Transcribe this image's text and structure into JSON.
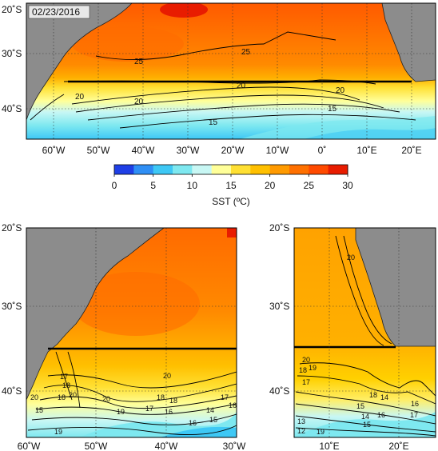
{
  "date_label": "02/23/2016",
  "colorbar": {
    "title": "SST (ºC)",
    "ticks": [
      "0",
      "5",
      "10",
      "15",
      "20",
      "25",
      "30"
    ],
    "range": [
      0,
      30
    ],
    "colors": [
      "#1f3fe6",
      "#2f8ff5",
      "#3ec8f5",
      "#7ee8f0",
      "#c8f7f4",
      "#ffff99",
      "#ffe033",
      "#ffc000",
      "#ff9a00",
      "#ff7000",
      "#ff4a00",
      "#e81c00"
    ]
  },
  "top_map": {
    "lat_labels": [
      "20˚S",
      "30˚S",
      "40˚S"
    ],
    "lon_labels": [
      "60˚W",
      "50˚W",
      "40˚W",
      "30˚W",
      "20˚W",
      "10˚W",
      "0˚",
      "10˚E",
      "20˚E"
    ],
    "contour_labels": [
      "25",
      "25",
      "20",
      "20",
      "20",
      "20",
      "15",
      "15"
    ]
  },
  "bottom_left_map": {
    "lat_labels": [
      "20˚S",
      "30˚S",
      "40˚S"
    ],
    "lon_labels": [
      "60˚W",
      "50˚W",
      "40˚W",
      "30˚W"
    ],
    "contour_labels": [
      "20",
      "17",
      "18",
      "18",
      "20",
      "15",
      "20",
      "19",
      "18",
      "17",
      "16",
      "16",
      "16",
      "15",
      "14",
      "18",
      "19",
      "17",
      "20"
    ]
  },
  "bottom_right_map": {
    "lat_labels": [
      "20˚S",
      "30˚S",
      "40˚S"
    ],
    "lon_labels": [
      "10˚E",
      "20˚E"
    ],
    "contour_labels": [
      "20",
      "20",
      "18",
      "19",
      "17",
      "18",
      "16",
      "15",
      "14",
      "15",
      "16",
      "17",
      "19",
      "14",
      "13",
      "12"
    ]
  },
  "land_color": "#8c8c8c"
}
